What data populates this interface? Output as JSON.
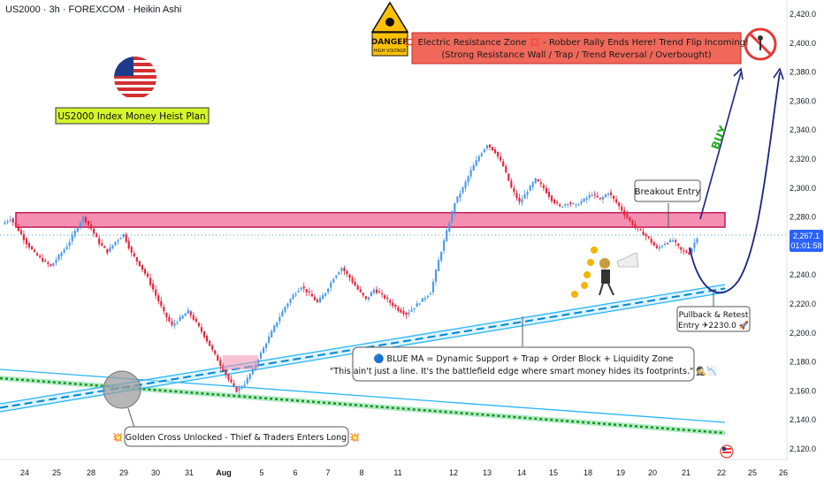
{
  "header": {
    "title": "US2000 · 3h · FOREXCOM · Heikin Ashi"
  },
  "plan_label": "US2000 Index Money Heist Plan",
  "danger_sign": {
    "line1": "DANGER",
    "line2": "HIGH VOLTAGE"
  },
  "resistance_note": {
    "line1": "💢 Electric Resistance Zone 💢 - Robber Rally Ends Here! Trend Flip Incoming!",
    "line2": "(Strong Resistance Wall / Trap / Trend Reversal / Overbought)"
  },
  "breakout_label": "Breakout Entry",
  "buy_label": "BUY",
  "pullback_label": {
    "line1": "Pullback & Retest",
    "line2": "Entry ✈2230.0 🚀"
  },
  "ma_note": {
    "line1": "🔵 BLUE MA = Dynamic Support + Trap + Order Block + Liquidity Zone",
    "line2": "\"This ain't just a line. It's the battlefield edge where smart money hides its footprints.\" 🕵📉"
  },
  "golden_cross_note": "💥 Golden Cross Unlocked - Thief & Traders Enters Long 💥",
  "price_badge": {
    "price": "2,267.1",
    "timer": "01:01:58"
  },
  "colors": {
    "bull": "#4b9be6",
    "bear": "#e8243c",
    "zone_fill": "#f48fb1",
    "zone_stroke": "#c2185b",
    "ma_blue": "#29b6f6",
    "ma_green": "#2aa62a",
    "note_bg": "#f0685a",
    "plan_bg": "#d4f52a",
    "badge_bg": "#2962ff"
  },
  "chart_data": {
    "type": "candlestick",
    "y_ticks": [
      2120,
      2140,
      2160,
      2180,
      2200,
      2220,
      2240,
      2260,
      2280,
      2300,
      2320,
      2340,
      2360,
      2380,
      2400,
      2420
    ],
    "y_tick_labels": [
      "2,120.0",
      "2,140.0",
      "2,160.0",
      "2,180.0",
      "2,200.0",
      "2,220.0",
      "2,240.0",
      "2,260.0",
      "2,280.0",
      "2,300.0",
      "2,320.0",
      "2,340.0",
      "2,360.0",
      "2,380.0",
      "2,400.0",
      "2,420.0"
    ],
    "ylim": [
      2110,
      2430
    ],
    "x_ticks": [
      "24",
      "25",
      "28",
      "29",
      "30",
      "31",
      "Aug",
      "5",
      "6",
      "7",
      "8",
      "11",
      "12",
      "13",
      "14",
      "15",
      "18",
      "19",
      "20",
      "21",
      "22",
      "25",
      "26"
    ],
    "resistance_zone": [
      2273,
      2283
    ],
    "entry": 2230.0,
    "current_price": 2267.1,
    "price_path": [
      [
        2275,
        2279
      ],
      [
        2279,
        2271
      ],
      [
        2271,
        2262
      ],
      [
        2262,
        2255
      ],
      [
        2255,
        2250
      ],
      [
        2250,
        2246
      ],
      [
        2246,
        2253
      ],
      [
        2253,
        2260
      ],
      [
        2260,
        2270
      ],
      [
        2270,
        2280
      ],
      [
        2280,
        2272
      ],
      [
        2272,
        2262
      ],
      [
        2262,
        2256
      ],
      [
        2256,
        2263
      ],
      [
        2263,
        2268
      ],
      [
        2268,
        2255
      ],
      [
        2255,
        2247
      ],
      [
        2247,
        2238
      ],
      [
        2238,
        2226
      ],
      [
        2226,
        2214
      ],
      [
        2214,
        2205
      ],
      [
        2205,
        2210
      ],
      [
        2210,
        2215
      ],
      [
        2215,
        2207
      ],
      [
        2207,
        2198
      ],
      [
        2198,
        2188
      ],
      [
        2188,
        2178
      ],
      [
        2178,
        2168
      ],
      [
        2168,
        2160
      ],
      [
        2160,
        2165
      ],
      [
        2165,
        2175
      ],
      [
        2175,
        2186
      ],
      [
        2186,
        2197
      ],
      [
        2197,
        2208
      ],
      [
        2208,
        2218
      ],
      [
        2218,
        2226
      ],
      [
        2226,
        2232
      ],
      [
        2232,
        2227
      ],
      [
        2227,
        2221
      ],
      [
        2221,
        2228
      ],
      [
        2228,
        2238
      ],
      [
        2238,
        2245
      ],
      [
        2245,
        2238
      ],
      [
        2238,
        2230
      ],
      [
        2230,
        2223
      ],
      [
        2223,
        2230
      ],
      [
        2230,
        2226
      ],
      [
        2226,
        2221
      ],
      [
        2221,
        2216
      ],
      [
        2216,
        2213
      ],
      [
        2213,
        2218
      ],
      [
        2218,
        2223
      ],
      [
        2223,
        2228
      ],
      [
        2228,
        2250
      ],
      [
        2250,
        2270
      ],
      [
        2270,
        2290
      ],
      [
        2290,
        2300
      ],
      [
        2300,
        2312
      ],
      [
        2312,
        2322
      ],
      [
        2322,
        2330
      ],
      [
        2330,
        2325
      ],
      [
        2325,
        2315
      ],
      [
        2315,
        2300
      ],
      [
        2300,
        2290
      ],
      [
        2290,
        2298
      ],
      [
        2298,
        2306
      ],
      [
        2306,
        2300
      ],
      [
        2300,
        2292
      ],
      [
        2292,
        2287
      ],
      [
        2287,
        2290
      ],
      [
        2290,
        2288
      ],
      [
        2288,
        2292
      ],
      [
        2292,
        2296
      ],
      [
        2296,
        2292
      ],
      [
        2292,
        2297
      ],
      [
        2297,
        2290
      ],
      [
        2290,
        2282
      ],
      [
        2282,
        2275
      ],
      [
        2275,
        2270
      ],
      [
        2270,
        2265
      ],
      [
        2265,
        2258
      ],
      [
        2258,
        2262
      ],
      [
        2262,
        2264
      ],
      [
        2264,
        2257
      ],
      [
        2257,
        2255
      ],
      [
        2255,
        2266
      ]
    ],
    "projection": [
      [
        2267,
        2285
      ],
      [
        2285,
        2310
      ],
      [
        2310,
        2345
      ],
      [
        2345,
        2395
      ]
    ]
  }
}
